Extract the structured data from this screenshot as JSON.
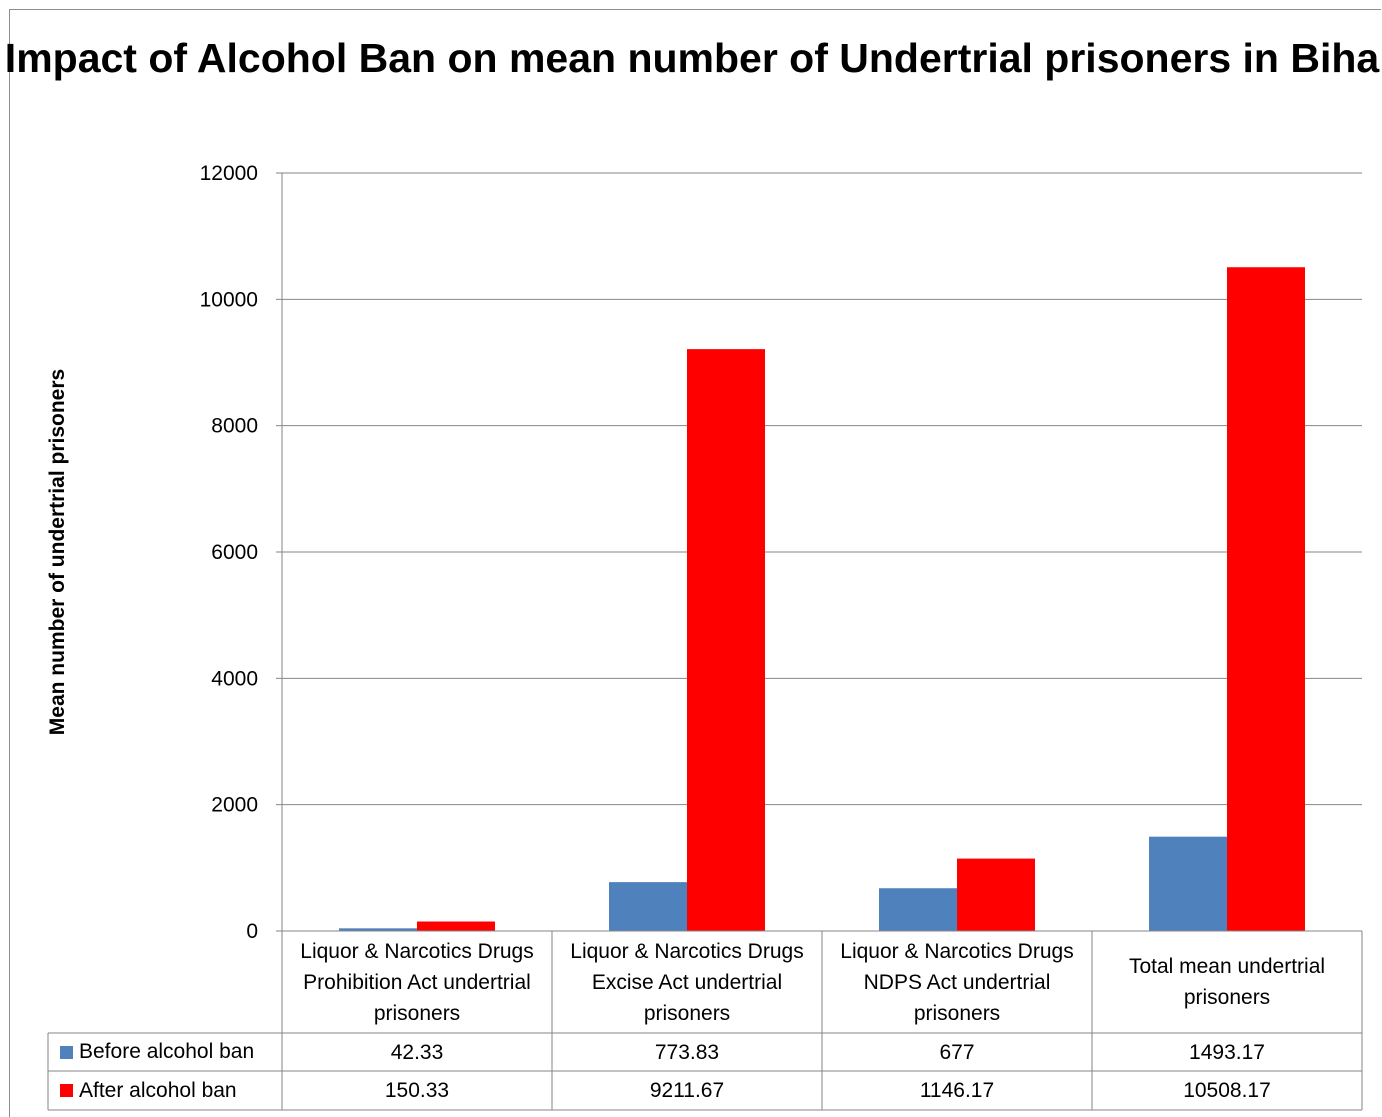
{
  "chart_data": {
    "type": "bar",
    "title": "Impact of Alcohol Ban on mean number of Undertrial prisoners in Bihar",
    "xlabel": "",
    "ylabel": "Mean number of undertrial prisoners",
    "ylim": [
      0,
      12000
    ],
    "yticks": [
      0,
      2000,
      4000,
      6000,
      8000,
      10000,
      12000
    ],
    "grid": true,
    "legend": "data-table",
    "categories": [
      "Liquor & Narcotics Drugs Prohibition Act undertrial prisoners",
      "Liquor & Narcotics Drugs Excise Act undertrial prisoners",
      "Liquor & Narcotics Drugs NDPS Act undertrial prisoners",
      "Total mean undertrial prisoners"
    ],
    "series": [
      {
        "name": "Before alcohol ban",
        "color": "#4f81bd",
        "values": [
          42.33,
          773.83,
          677,
          1493.17
        ]
      },
      {
        "name": "After alcohol ban",
        "color": "#ff0000",
        "values": [
          150.33,
          9211.67,
          1146.17,
          10508.17
        ]
      }
    ]
  }
}
